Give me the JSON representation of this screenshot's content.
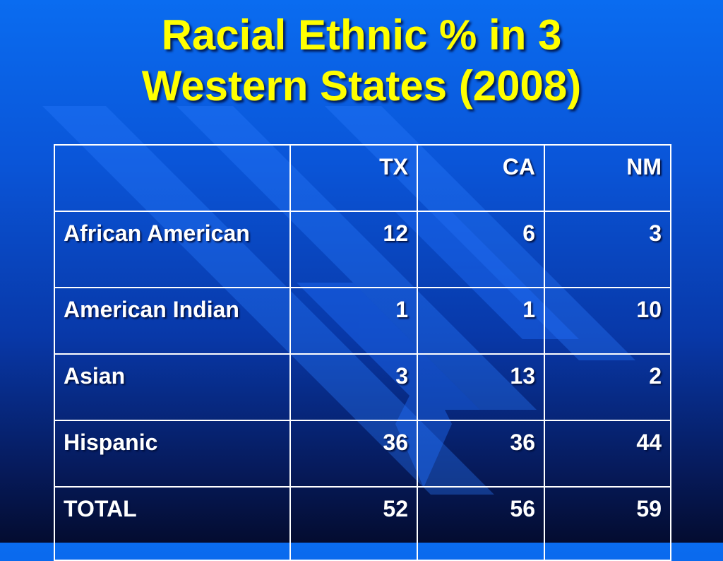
{
  "slide": {
    "title_line1": "Racial Ethnic % in 3",
    "title_line2": "Western States (2008)"
  },
  "table": {
    "columns": [
      "",
      "TX",
      "CA",
      "NM"
    ],
    "rows": [
      {
        "label": "African American",
        "values": [
          "12",
          "6",
          "3"
        ]
      },
      {
        "label": "American Indian",
        "values": [
          "1",
          "1",
          "10"
        ]
      },
      {
        "label": "Asian",
        "values": [
          "3",
          "13",
          "2"
        ]
      },
      {
        "label": "Hispanic",
        "values": [
          "36",
          "36",
          "44"
        ]
      },
      {
        "label": "TOTAL",
        "values": [
          "52",
          "56",
          "59"
        ]
      }
    ]
  },
  "colors": {
    "title": "#ffff00",
    "text": "#ffffff",
    "background_top": "#0a6cf0",
    "background_bottom": "#040c30"
  }
}
